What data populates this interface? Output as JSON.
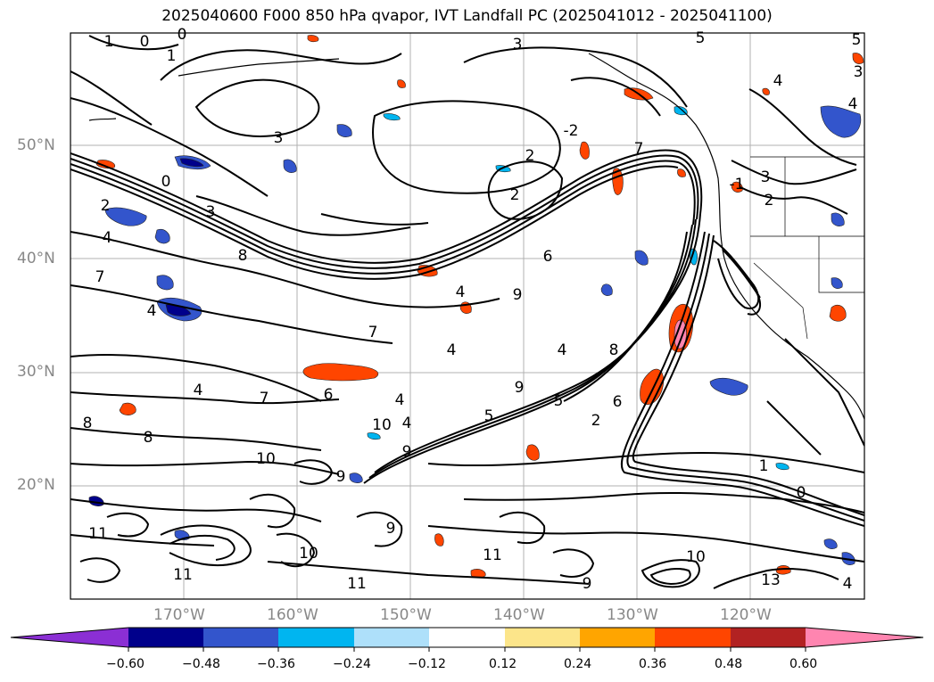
{
  "title": "2025040600 F000 850 hPa qvapor, IVT Landfall PC (2025041012 - 2025041100)",
  "map": {
    "lat_labels": [
      "50°N",
      "40°N",
      "30°N",
      "20°N"
    ],
    "lon_labels": [
      "170°W",
      "160°W",
      "150°W",
      "140°W",
      "130°W",
      "120°W"
    ],
    "contour_labels": [
      "1",
      "0",
      "0",
      "1",
      "3",
      "5",
      "5",
      "4",
      "3",
      "-2",
      "2",
      "4",
      "3",
      "7",
      "2",
      "-1",
      "3",
      "0",
      "2",
      "3",
      "2",
      "4",
      "8",
      "7",
      "6",
      "4",
      "4",
      "7",
      "9",
      "8",
      "4",
      "5",
      "5",
      "4",
      "7",
      "6",
      "9",
      "4",
      "4",
      "6",
      "2",
      "10",
      "8",
      "10",
      "9",
      "4",
      "8",
      "1",
      "0",
      "9",
      "9",
      "11",
      "10",
      "11",
      "9",
      "13",
      "10",
      "11",
      "11",
      "4"
    ]
  },
  "colorbar": {
    "tick_labels": [
      "−0.60",
      "−0.48",
      "−0.36",
      "−0.24",
      "−0.12",
      "0.12",
      "0.24",
      "0.36",
      "0.48",
      "0.60"
    ],
    "colors": [
      "#8b2fd4",
      "#00008b",
      "#3355cc",
      "#00b5f0",
      "#aee0fa",
      "#ffffff",
      "#fce58a",
      "#ffa500",
      "#ff4500",
      "#b22222",
      "#ff85b0"
    ]
  }
}
